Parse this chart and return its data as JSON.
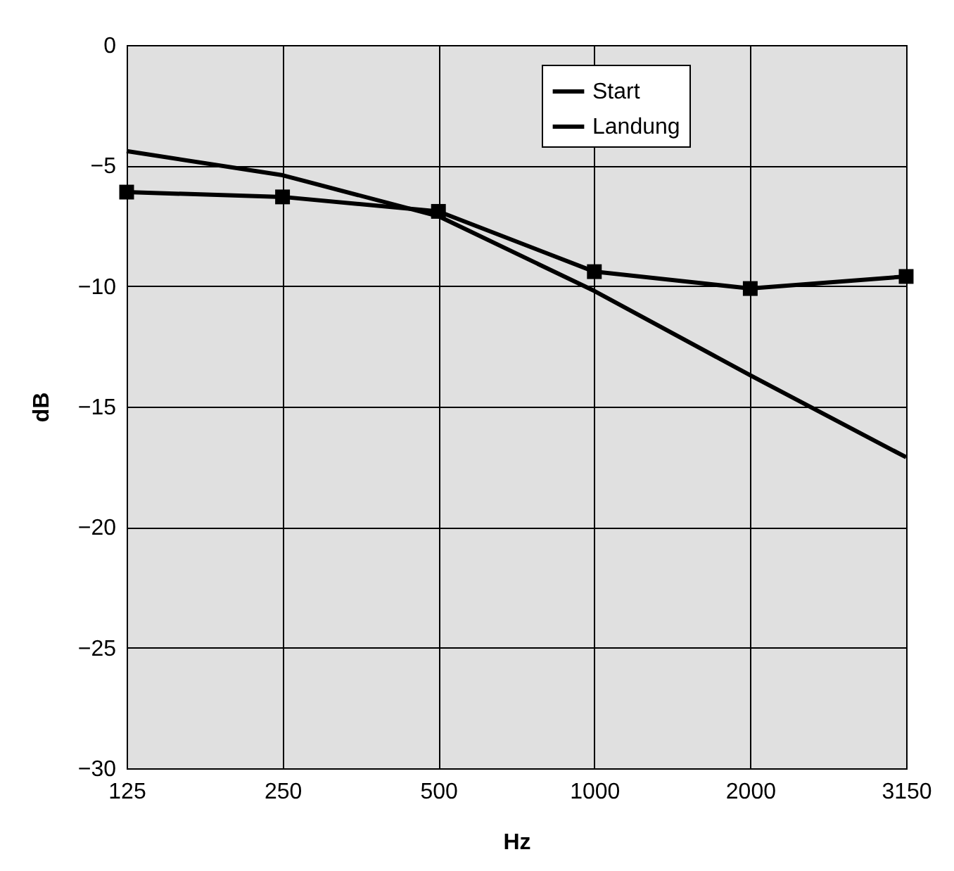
{
  "chart_data": {
    "type": "line",
    "xlabel": "Hz",
    "ylabel": "dB",
    "categories": [
      "125",
      "250",
      "500",
      "1000",
      "2000",
      "3150"
    ],
    "series": [
      {
        "name": "Start",
        "color": "#000000",
        "marker": "none",
        "values": [
          -4.4,
          -5.4,
          -7.1,
          -10.2,
          -13.7,
          -17.1
        ]
      },
      {
        "name": "Landung",
        "color": "#000000",
        "marker": "square",
        "values": [
          -6.1,
          -6.3,
          -6.9,
          -9.4,
          -10.1,
          -9.6
        ]
      }
    ],
    "ylim": [
      -30,
      0
    ],
    "yticks": [
      -30,
      -25,
      -20,
      -15,
      -10,
      -5,
      0
    ],
    "grid": true,
    "legend": "top right",
    "line_style": "solid"
  }
}
